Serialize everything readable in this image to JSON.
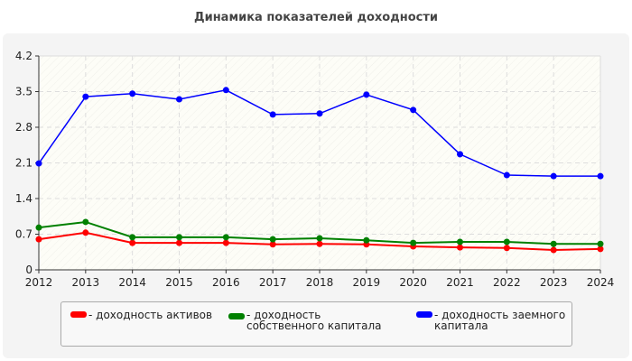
{
  "chart_data": {
    "type": "line",
    "title": "Динамика показателей доходности",
    "x": [
      2012,
      2013,
      2014,
      2015,
      2016,
      2017,
      2018,
      2019,
      2020,
      2021,
      2022,
      2023,
      2024
    ],
    "ylim": [
      0,
      4.2
    ],
    "yticks": [
      0,
      0.7,
      1.4,
      2.1,
      2.8,
      3.5,
      4.2
    ],
    "ytick_labels": [
      "0",
      "0.7",
      "1.4",
      "2.1",
      "2.8",
      "3.5",
      "4.2"
    ],
    "grid": true,
    "legend_placement": "bottom",
    "series": [
      {
        "name": "- доходность активов",
        "color": "#ff0000",
        "values": [
          0.6,
          0.73,
          0.53,
          0.53,
          0.53,
          0.5,
          0.51,
          0.5,
          0.46,
          0.44,
          0.43,
          0.39,
          0.41
        ]
      },
      {
        "name": "- доходность собственного капитала",
        "color": "#008000",
        "values": [
          0.83,
          0.94,
          0.64,
          0.64,
          0.64,
          0.6,
          0.62,
          0.58,
          0.53,
          0.55,
          0.55,
          0.51,
          0.51
        ]
      },
      {
        "name": "- доходность заемного капитала",
        "color": "#0000ff",
        "values": [
          2.09,
          3.4,
          3.46,
          3.35,
          3.53,
          3.05,
          3.07,
          3.44,
          3.14,
          2.27,
          1.86,
          1.84,
          1.84
        ]
      }
    ]
  }
}
